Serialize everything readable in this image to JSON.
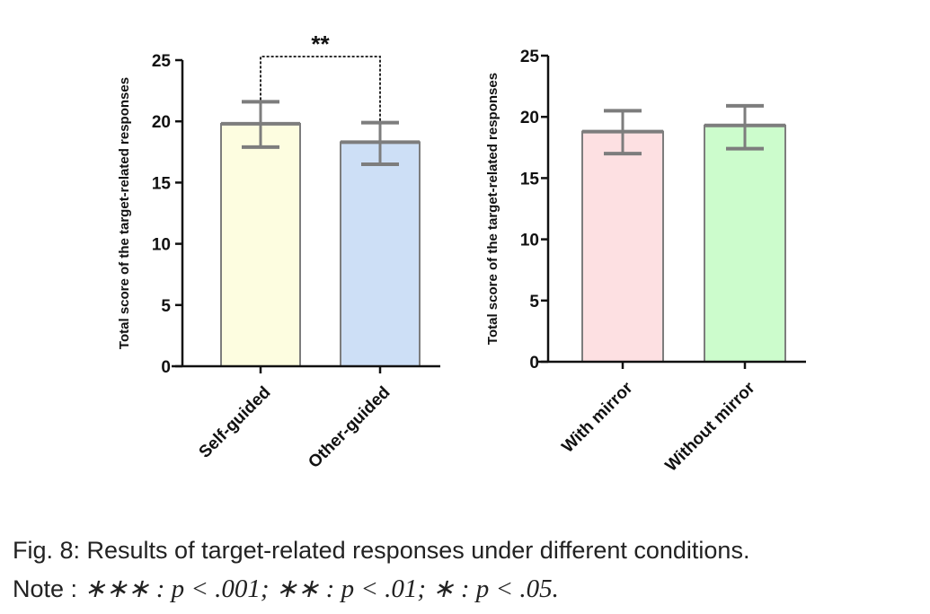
{
  "chart_data": [
    {
      "type": "bar",
      "ylabel": "Total score of the target-related responses",
      "ylim": [
        0,
        25
      ],
      "yticks": [
        0,
        5,
        10,
        15,
        20,
        25
      ],
      "categories": [
        "Self-guided",
        "Other-guided"
      ],
      "values": [
        19.8,
        18.3
      ],
      "error_low": [
        17.9,
        16.5
      ],
      "error_high": [
        21.6,
        19.9
      ],
      "bar_colors": [
        "#fdfde0",
        "#cddff6"
      ],
      "significance": {
        "between": [
          0,
          1
        ],
        "label": "**"
      }
    },
    {
      "type": "bar",
      "ylabel": "Total score of the target-related responses",
      "ylim": [
        0,
        25
      ],
      "yticks": [
        0,
        5,
        10,
        15,
        20,
        25
      ],
      "categories": [
        "With mirror",
        "Without mirror"
      ],
      "values": [
        18.8,
        19.3
      ],
      "error_low": [
        17.0,
        17.4
      ],
      "error_high": [
        20.5,
        20.9
      ],
      "bar_colors": [
        "#fde0e2",
        "#ccfccc"
      ]
    }
  ],
  "caption": {
    "line1": "Fig. 8: Results of target-related responses under different conditions.",
    "line2_prefix": "Note : ",
    "line2_math": "∗∗∗ : p < .001; ∗∗ : p < .01; ∗ : p < .05."
  }
}
